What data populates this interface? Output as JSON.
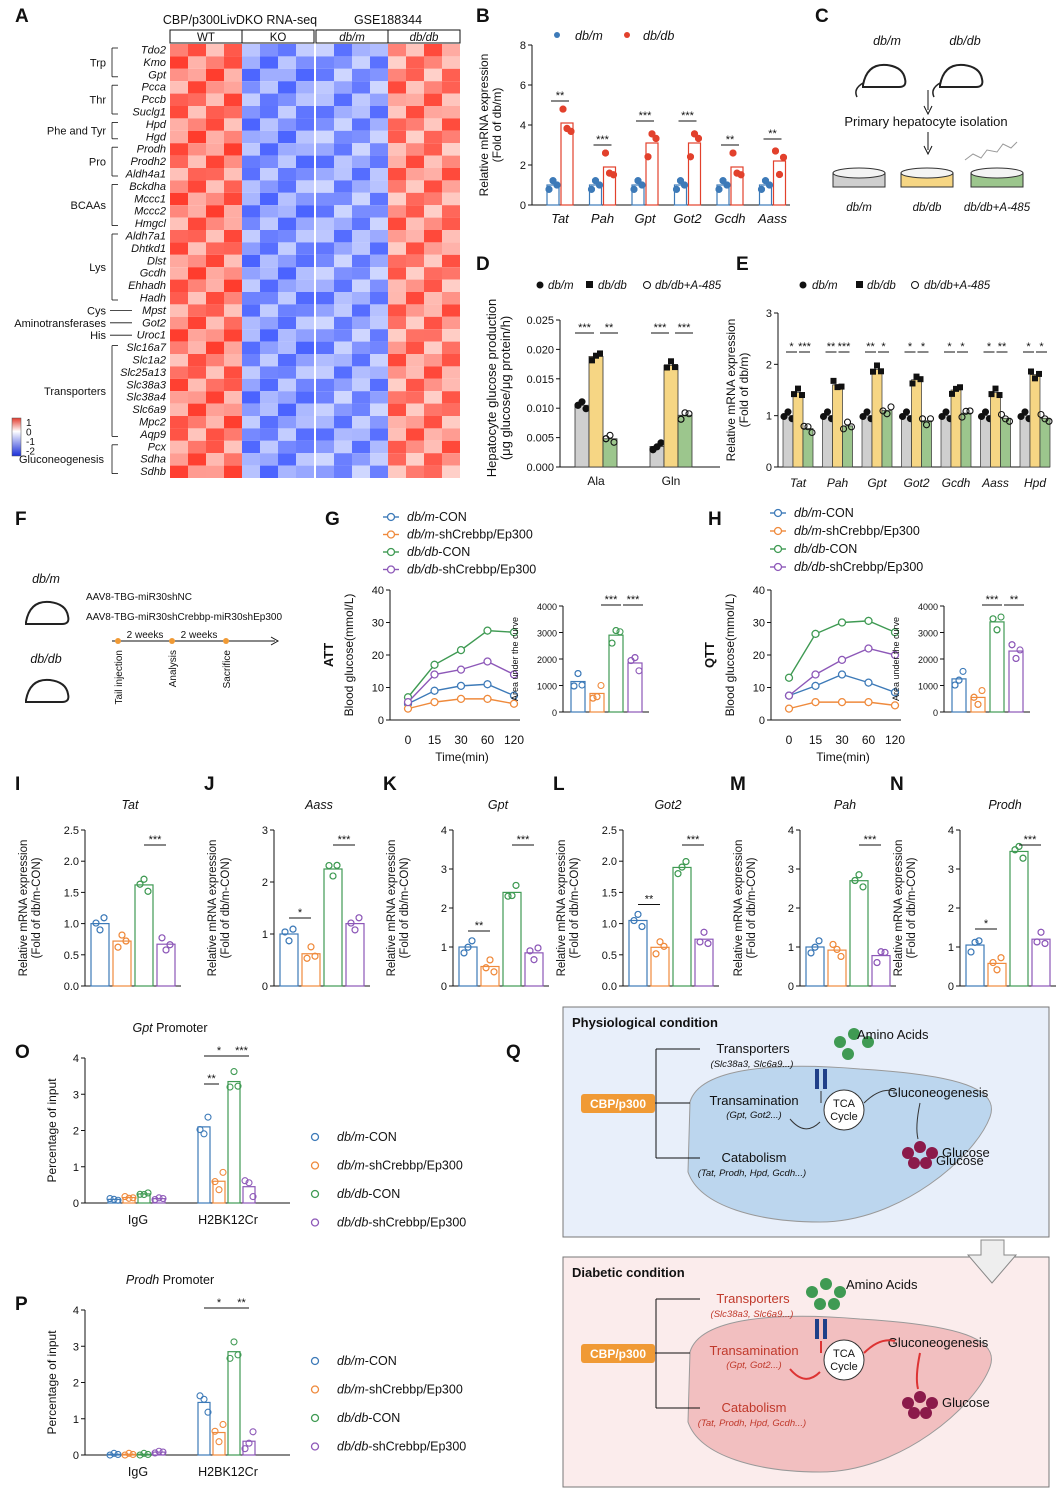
{
  "colors": {
    "blue": "#3d7ab8",
    "orange": "#ef8a3c",
    "green": "#3f9a53",
    "purple": "#8d58b8",
    "red": "#e2412c",
    "gray": "#cfcfcf",
    "yellow": "#f6d684",
    "lgreen": "#9cc68d",
    "liverBlue": "#bcd6ee",
    "liverPink": "#f2bfc0",
    "panelBlue": "#e8effa",
    "panelPink": "#fbecec",
    "cbp": "#f09a35"
  },
  "panel_letters": [
    "A",
    "B",
    "C",
    "D",
    "E",
    "F",
    "G",
    "H",
    "I",
    "J",
    "K",
    "L",
    "M",
    "N",
    "O",
    "P",
    "Q"
  ],
  "heatmap": {
    "title_left": "CBP/p300LivDKO RNA-seq",
    "title_right": "GSE188344",
    "groups": [
      "WT",
      "KO",
      "db/m",
      "db/db"
    ],
    "genes": [
      "Tdo2",
      "Kmo",
      "Gpt",
      "Pcca",
      "Pccb",
      "Suclg1",
      "Hpd",
      "Hgd",
      "Prodh",
      "Prodh2",
      "Aldh4a1",
      "Bckdha",
      "Mccc1",
      "Mccc2",
      "Hmgcl",
      "Aldh7a1",
      "Dhtkd1",
      "Dlst",
      "Gcdh",
      "Ehhadh",
      "Hadh",
      "Mpst",
      "Got2",
      "Uroc1",
      "Slc16a7",
      "Slc1a2",
      "Slc25a13",
      "Slc38a3",
      "Slc38a4",
      "Slc6a9",
      "Mpc2",
      "Aqp9",
      "Pcx",
      "Sdha",
      "Sdhb"
    ],
    "categories": [
      {
        "name": "Trp",
        "from": 0,
        "to": 2
      },
      {
        "name": "Thr",
        "from": 3,
        "to": 5
      },
      {
        "name": "Phe and Tyr",
        "from": 6,
        "to": 7
      },
      {
        "name": "Pro",
        "from": 8,
        "to": 10
      },
      {
        "name": "BCAAs",
        "from": 11,
        "to": 14
      },
      {
        "name": "Lys",
        "from": 15,
        "to": 20
      },
      {
        "name": "Cys",
        "from": 21,
        "to": 21
      },
      {
        "name": "Aminotransferases",
        "from": 22,
        "to": 22
      },
      {
        "name": "His",
        "from": 23,
        "to": 23
      },
      {
        "name": "Transporters",
        "from": 24,
        "to": 31
      },
      {
        "name": "Gluconeogenesis",
        "from": 32,
        "to": 34
      }
    ],
    "legend_ticks": [
      "1",
      "0",
      "-1",
      "-2"
    ]
  },
  "chart_data": [
    {
      "id": "B",
      "type": "bar",
      "title": "",
      "ylabel": "Relative mRNA expression (Fold of db/m)",
      "categories": [
        "Tat",
        "Pah",
        "Gpt",
        "Got2",
        "Gcdh",
        "Aass"
      ],
      "series": [
        {
          "name": "db/m",
          "values": [
            1.0,
            1.0,
            1.0,
            1.0,
            1.0,
            1.0
          ]
        },
        {
          "name": "db/db",
          "values": [
            4.1,
            1.9,
            3.1,
            3.1,
            1.9,
            2.2
          ]
        }
      ],
      "yticks": [
        "0",
        "2",
        "4",
        "6",
        "8"
      ],
      "ylim": [
        0,
        8
      ],
      "significance": [
        "**",
        "***",
        "***",
        "***",
        "**",
        "**"
      ]
    },
    {
      "id": "D",
      "type": "bar",
      "ylabel": "Hepatocyte glucose production (μg glucose/μg protein/h)",
      "categories": [
        "Ala",
        "Gln"
      ],
      "series": [
        {
          "name": "db/m",
          "values": [
            0.0105,
            0.0035
          ]
        },
        {
          "name": "db/db",
          "values": [
            0.0188,
            0.0173
          ]
        },
        {
          "name": "db/db+A-485",
          "values": [
            0.0048,
            0.0088
          ]
        }
      ],
      "yticks": [
        "0.000",
        "0.005",
        "0.010",
        "0.015",
        "0.020",
        "0.025"
      ],
      "ylim": [
        0,
        0.025
      ],
      "significance": [
        "***",
        "**",
        "***",
        "***"
      ]
    },
    {
      "id": "E",
      "type": "bar",
      "ylabel": "Relative mRNA expression (Fold of db/m)",
      "categories": [
        "Tat",
        "Pah",
        "Gpt",
        "Got2",
        "Gcdh",
        "Aass",
        "Hpd"
      ],
      "series": [
        {
          "name": "db/m",
          "values": [
            1,
            1,
            1,
            1,
            1,
            1,
            1
          ]
        },
        {
          "name": "db/db",
          "values": [
            1.45,
            1.6,
            1.9,
            1.7,
            1.5,
            1.45,
            1.8
          ]
        },
        {
          "name": "db/db+A-485",
          "values": [
            0.75,
            0.8,
            1.1,
            0.9,
            1.05,
            0.95,
            0.95
          ]
        }
      ],
      "yticks": [
        "0",
        "1",
        "2",
        "3"
      ],
      "ylim": [
        0,
        3
      ],
      "significance": [
        [
          "*",
          "***"
        ],
        [
          "**",
          "***"
        ],
        [
          "**",
          "*"
        ],
        [
          "*",
          "*"
        ],
        [
          "*",
          "*"
        ],
        [
          "*",
          "**"
        ],
        [
          "*",
          "*"
        ]
      ]
    },
    {
      "id": "G",
      "type": "line",
      "ylabel": "Blood glucose(mmol/L)",
      "xlabel": "Time(min)",
      "side_label": "ATT",
      "x": [
        "0",
        "15",
        "30",
        "60",
        "120"
      ],
      "yticks": [
        "0",
        "10",
        "20",
        "30",
        "40"
      ],
      "ylim": [
        0,
        40
      ],
      "series": [
        {
          "name": "db/m-CON",
          "values": [
            5,
            9,
            10.5,
            11,
            7.5
          ]
        },
        {
          "name": "db/m-shCrebbp/Ep300",
          "values": [
            3.5,
            5.5,
            6.5,
            6.5,
            5
          ]
        },
        {
          "name": "db/db-CON",
          "values": [
            7,
            17,
            21.5,
            27.5,
            27
          ]
        },
        {
          "name": "db/db-shCrebbp/Ep300",
          "values": [
            5.5,
            14,
            15.5,
            18,
            14
          ]
        }
      ],
      "auc": {
        "ylabel": "Area under the curve",
        "yticks": [
          "0",
          "1000",
          "2000",
          "3000",
          "4000"
        ],
        "ylim": [
          0,
          4000
        ],
        "values": [
          1150,
          700,
          2900,
          1850
        ],
        "significance": [
          "***",
          "***"
        ]
      }
    },
    {
      "id": "H",
      "type": "line",
      "ylabel": "Blood glucose(mmol/L)",
      "xlabel": "Time(min)",
      "side_label": "QTT",
      "x": [
        "0",
        "15",
        "30",
        "60",
        "120"
      ],
      "yticks": [
        "0",
        "10",
        "20",
        "30",
        "40"
      ],
      "ylim": [
        0,
        40
      ],
      "series": [
        {
          "name": "db/m-CON",
          "values": [
            7.5,
            10.5,
            14,
            11.5,
            8.5
          ]
        },
        {
          "name": "db/m-shCrebbp/Ep300",
          "values": [
            3.5,
            5.5,
            5.5,
            5.5,
            4.5
          ]
        },
        {
          "name": "db/db-CON",
          "values": [
            13,
            26.5,
            30,
            30.5,
            27
          ]
        },
        {
          "name": "db/db-shCrebbp/Ep300",
          "values": [
            7.5,
            14,
            18.5,
            22,
            20
          ]
        }
      ],
      "auc": {
        "ylabel": "Area under the curve",
        "yticks": [
          "0",
          "1000",
          "2000",
          "3000",
          "4000"
        ],
        "ylim": [
          0,
          4000
        ],
        "values": [
          1250,
          550,
          3400,
          2300
        ],
        "significance": [
          "***",
          "**"
        ]
      }
    },
    {
      "id": "I",
      "type": "bar",
      "title": "Tat",
      "ylabel": "Relative mRNA expression (Fold of db/m-CON)",
      "yticks": [
        "0.0",
        "0.5",
        "1.0",
        "1.5",
        "2.0",
        "2.5"
      ],
      "ylim": [
        0,
        2.5
      ],
      "values": [
        1.0,
        0.72,
        1.62,
        0.67
      ],
      "sig": [
        {
          "a": 2,
          "b": 3,
          "t": "***"
        }
      ]
    },
    {
      "id": "J",
      "type": "bar",
      "title": "Aass",
      "ylabel": "Relative mRNA expression (Fold of db/m-CON)",
      "yticks": [
        "0",
        "1",
        "2",
        "3"
      ],
      "ylim": [
        0,
        3
      ],
      "values": [
        1.0,
        0.62,
        2.25,
        1.2
      ],
      "sig": [
        {
          "a": 0,
          "b": 1,
          "t": "*"
        },
        {
          "a": 2,
          "b": 3,
          "t": "***"
        }
      ]
    },
    {
      "id": "K",
      "type": "bar",
      "title": "Gpt",
      "ylabel": "Relative mRNA expression (Fold of db/m-CON)",
      "yticks": [
        "0",
        "1",
        "2",
        "3",
        "4"
      ],
      "ylim": [
        0,
        4
      ],
      "values": [
        1.0,
        0.5,
        2.4,
        0.85
      ],
      "sig": [
        {
          "a": 0,
          "b": 1,
          "t": "**"
        },
        {
          "a": 2,
          "b": 3,
          "t": "***"
        }
      ]
    },
    {
      "id": "L",
      "type": "bar",
      "title": "Got2",
      "ylabel": "Relative mRNA expression (Fold of db/m-CON)",
      "yticks": [
        "0.0",
        "0.5",
        "1.0",
        "1.5",
        "2.0",
        "2.5"
      ],
      "ylim": [
        0,
        2.5
      ],
      "values": [
        1.05,
        0.62,
        1.9,
        0.75
      ],
      "sig": [
        {
          "a": 0,
          "b": 1,
          "t": "**"
        },
        {
          "a": 2,
          "b": 3,
          "t": "***"
        }
      ]
    },
    {
      "id": "M",
      "type": "bar",
      "title": "Pah",
      "ylabel": "Relative mRNA expression (Fold of db/m-CON)",
      "yticks": [
        "0",
        "1",
        "2",
        "3",
        "4"
      ],
      "ylim": [
        0,
        4
      ],
      "values": [
        1.0,
        0.92,
        2.7,
        0.78
      ],
      "sig": [
        {
          "a": 2,
          "b": 3,
          "t": "***"
        }
      ]
    },
    {
      "id": "N",
      "type": "bar",
      "title": "Prodh",
      "ylabel": "Relative mRNA expression (Fold of db/m-CON)",
      "yticks": [
        "0",
        "1",
        "2",
        "3",
        "4"
      ],
      "ylim": [
        0,
        4
      ],
      "values": [
        1.05,
        0.58,
        3.45,
        1.2
      ],
      "sig": [
        {
          "a": 0,
          "b": 1,
          "t": "*"
        },
        {
          "a": 2,
          "b": 3,
          "t": "***"
        }
      ]
    },
    {
      "id": "O",
      "type": "bar",
      "title": "Gpt Promoter",
      "ylabel": "Percentage of input",
      "categories": [
        "IgG",
        "H2BK12Cr"
      ],
      "yticks": [
        "0",
        "1",
        "2",
        "3",
        "4"
      ],
      "ylim": [
        0,
        4
      ],
      "series": [
        {
          "name": "db/m-CON",
          "values": [
            0.1,
            2.1
          ]
        },
        {
          "name": "db/m-shCrebbp/Ep300",
          "values": [
            0.15,
            0.6
          ]
        },
        {
          "name": "db/db-CON",
          "values": [
            0.25,
            3.35
          ]
        },
        {
          "name": "db/db-shCrebbp/Ep300",
          "values": [
            0.12,
            0.45
          ]
        }
      ],
      "sig": [
        {
          "a": 0,
          "b": 1,
          "t": "**",
          "lv": 0
        },
        {
          "a": 0,
          "b": 2,
          "t": "*",
          "lv": 1
        },
        {
          "a": 2,
          "b": 3,
          "t": "***",
          "lv": 1
        }
      ]
    },
    {
      "id": "P",
      "type": "bar",
      "title": "Prodh Promoter",
      "ylabel": "Percentage of input",
      "categories": [
        "IgG",
        "H2BK12Cr"
      ],
      "yticks": [
        "0",
        "1",
        "2",
        "3",
        "4"
      ],
      "ylim": [
        0,
        4
      ],
      "series": [
        {
          "name": "db/m-CON",
          "values": [
            0.02,
            1.45
          ]
        },
        {
          "name": "db/m-shCrebbp/Ep300",
          "values": [
            0.02,
            0.62
          ]
        },
        {
          "name": "db/db-CON",
          "values": [
            0.02,
            2.85
          ]
        },
        {
          "name": "db/db-shCrebbp/Ep300",
          "values": [
            0.08,
            0.38
          ]
        }
      ],
      "sig": [
        {
          "a": 0,
          "b": 2,
          "t": "*",
          "lv": 1
        },
        {
          "a": 2,
          "b": 3,
          "t": "**",
          "lv": 1
        }
      ]
    }
  ],
  "legends": {
    "B": [
      "db/m",
      "db/db"
    ],
    "DE": [
      "db/m",
      "db/db",
      "db/db+A-485"
    ],
    "four": [
      "db/m-CON",
      "db/m-shCrebbp/Ep300",
      "db/db-CON",
      "db/db-shCrebbp/Ep300"
    ]
  },
  "panelC": {
    "top1": "db/m",
    "top2": "db/db",
    "step": "Primary hepatocyte isolation",
    "dishes": [
      "db/m",
      "db/db",
      "db/db+A-485"
    ]
  },
  "panelF": {
    "mouse1": "db/m",
    "mouse2": "db/db",
    "vector1": "AAV8-TBG-miR30shNC",
    "vector2": "AAV8-TBG-miR30shCrebbp-miR30shEp300",
    "weeks1": "2 weeks",
    "weeks2": "2 weeks",
    "events": [
      "Tail injection",
      "Analysis",
      "Sacrifice"
    ]
  },
  "panelQ": {
    "phys_title": "Physiological condition",
    "diab_title": "Diabetic condition",
    "amino": "Amino Acids",
    "cbp": "CBP/p300",
    "transporters": "Transporters",
    "transporters_sub": "(Slc38a3, Slc6a9...)",
    "transamination": "Transamination",
    "transamination_sub": "(Gpt, Got2...)",
    "catabolism": "Catabolism",
    "catabolism_sub": "(Tat, Prodh, Hpd, Gcdh...)",
    "tca1": "TCA",
    "tca2": "Cycle",
    "gng": "Gluconeogenesis",
    "glucose": "Glucose"
  }
}
